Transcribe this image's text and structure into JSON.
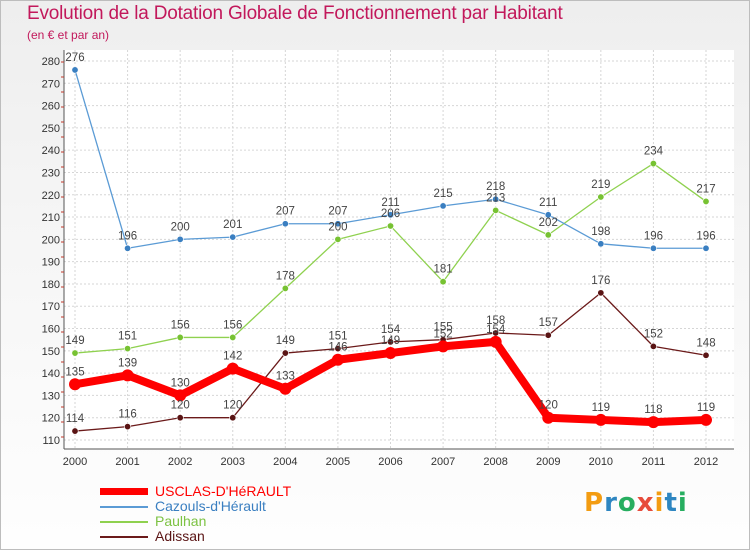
{
  "header": {
    "title": "Evolution de la Dotation Globale de Fonctionnement par Habitant",
    "subtitle": "(en € et par an)"
  },
  "logo": {
    "text": "Proxiti",
    "colors": [
      "#f39c12",
      "#2e86c1",
      "#27ae60",
      "#e74c3c",
      "#f39c12",
      "#2e86c1",
      "#27ae60"
    ]
  },
  "chart_data": {
    "type": "line",
    "title": "Evolution de la Dotation Globale de Fonctionnement par Habitant",
    "subtitle": "(en € et par an)",
    "xlabel": "",
    "ylabel": "",
    "x": [
      "2000",
      "2001",
      "2002",
      "2003",
      "2004",
      "2005",
      "2006",
      "2007",
      "2008",
      "2009",
      "2010",
      "2011",
      "2012"
    ],
    "ylim": [
      110,
      280
    ],
    "yticks": [
      110,
      120,
      130,
      140,
      150,
      160,
      170,
      180,
      190,
      200,
      210,
      220,
      230,
      240,
      250,
      260,
      270,
      280
    ],
    "grid": true,
    "legend_position": "bottom-left",
    "series": [
      {
        "name": "USCLAS-D'HéRAULT",
        "color": "#ff0000",
        "values": [
          135,
          139,
          130,
          142,
          133,
          146,
          149,
          152,
          154,
          120,
          119,
          118,
          119
        ]
      },
      {
        "name": "Cazouls-d'Hérault",
        "color": "#5b9bd5",
        "values": [
          276,
          196,
          200,
          201,
          207,
          207,
          211,
          215,
          218,
          211,
          198,
          196,
          196
        ]
      },
      {
        "name": "Paulhan",
        "color": "#8fd14f",
        "values": [
          149,
          151,
          156,
          156,
          178,
          200,
          206,
          181,
          213,
          202,
          219,
          234,
          217
        ]
      },
      {
        "name": "Adissan",
        "color": "#6b1a1a",
        "values": [
          114,
          116,
          120,
          120,
          149,
          151,
          154,
          155,
          158,
          157,
          176,
          152,
          148
        ]
      }
    ]
  }
}
